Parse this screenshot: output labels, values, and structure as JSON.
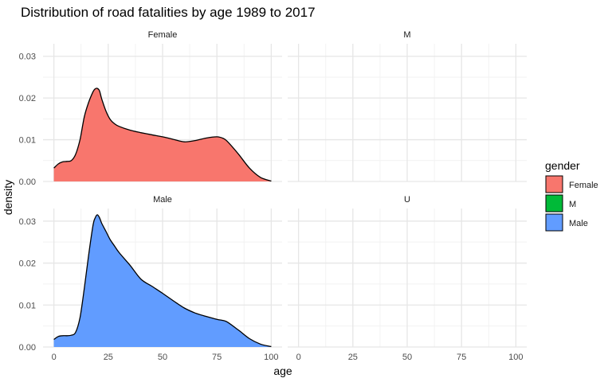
{
  "chart_data": {
    "type": "area",
    "title": "Distribution of road fatalities by age 1989 to 2017",
    "xlabel": "age",
    "ylabel": "density",
    "xlim": [
      0,
      100
    ],
    "ylim": [
      0,
      0.033
    ],
    "x_ticks": [
      "0",
      "25",
      "50",
      "75",
      "100"
    ],
    "y_ticks": [
      "0.00",
      "0.01",
      "0.02",
      "0.03"
    ],
    "grid": true,
    "legend": {
      "title": "gender",
      "position": "right",
      "entries": [
        {
          "label": "Female",
          "color": "#F8766D"
        },
        {
          "label": "M",
          "color": "#00BA38"
        },
        {
          "label": "Male",
          "color": "#619CFF"
        }
      ]
    },
    "facets": [
      {
        "label": "Female",
        "color": "#F8766D",
        "x": [
          0,
          2,
          4,
          6,
          8,
          10,
          12,
          14,
          16,
          18,
          19,
          20,
          21,
          22,
          24,
          26,
          28,
          30,
          35,
          40,
          45,
          50,
          55,
          60,
          65,
          70,
          75,
          78,
          80,
          85,
          90,
          95,
          100
        ],
        "y": [
          0.0032,
          0.0042,
          0.0047,
          0.0048,
          0.005,
          0.0065,
          0.01,
          0.0155,
          0.019,
          0.0215,
          0.0222,
          0.0223,
          0.0217,
          0.0198,
          0.0168,
          0.0148,
          0.0138,
          0.0132,
          0.0123,
          0.0117,
          0.0112,
          0.0107,
          0.0101,
          0.0095,
          0.0098,
          0.0104,
          0.0107,
          0.0103,
          0.0095,
          0.0065,
          0.0032,
          0.001,
          0.0001
        ]
      },
      {
        "label": "M",
        "color": "#00BA38",
        "x": [],
        "y": []
      },
      {
        "label": "Male",
        "color": "#619CFF",
        "x": [
          0,
          2,
          4,
          6,
          8,
          10,
          12,
          14,
          16,
          18,
          19,
          20,
          21,
          22,
          24,
          26,
          28,
          30,
          35,
          40,
          45,
          50,
          55,
          60,
          65,
          70,
          75,
          78,
          80,
          85,
          90,
          95,
          100
        ],
        "y": [
          0.0018,
          0.0025,
          0.0027,
          0.0027,
          0.0028,
          0.0035,
          0.007,
          0.014,
          0.022,
          0.029,
          0.0308,
          0.0315,
          0.0308,
          0.0295,
          0.0275,
          0.0255,
          0.024,
          0.0225,
          0.0195,
          0.0162,
          0.0145,
          0.0128,
          0.011,
          0.0093,
          0.0081,
          0.0073,
          0.0066,
          0.0063,
          0.0059,
          0.004,
          0.002,
          0.0007,
          0.0001
        ]
      },
      {
        "label": "U",
        "color": "#619CFF",
        "x": [],
        "y": []
      }
    ]
  }
}
